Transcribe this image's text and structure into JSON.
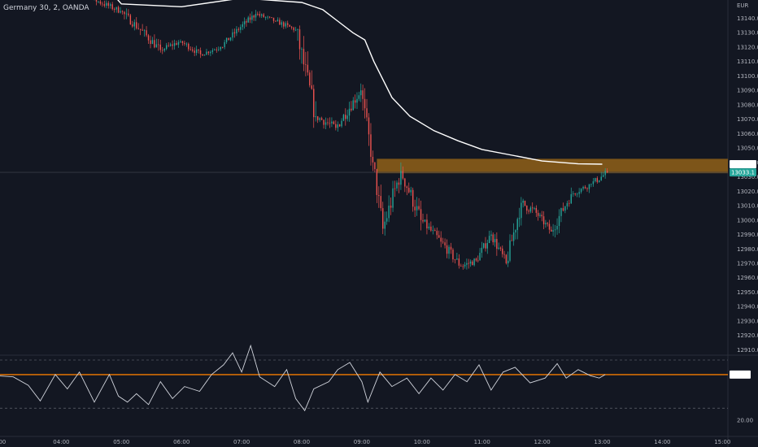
{
  "header": {
    "title": "Germany 30, 2, OANDA",
    "currency": "EUR"
  },
  "chart_data": [
    {
      "type": "candlestick",
      "title": "Germany 30, 2, OANDA",
      "ylabel": "EUR",
      "ylim": [
        12905,
        13157
      ],
      "y_ticks": [
        13140.0,
        13130.0,
        13120.0,
        13110.0,
        13100.0,
        13090.0,
        13080.0,
        13070.0,
        13060.0,
        13050.0,
        13040.0,
        13030.0,
        13020.0,
        13010.0,
        13000.0,
        12990.0,
        12980.0,
        12970.0,
        12960.0,
        12950.0,
        12940.0,
        12930.0,
        12920.0,
        12910.0
      ],
      "x_ticks": [
        "04:00",
        "05:00",
        "06:00",
        "07:00",
        "08:00",
        "09:00",
        "10:00",
        "11:00",
        "12:00",
        "13:00",
        "14:00",
        "15:00"
      ],
      "xlim_hours": [
        3.0,
        15.0
      ],
      "first_visible_label": ":00",
      "colors": {
        "up": "#26a69a",
        "down": "#ef5350",
        "background": "#131722",
        "grid": "#1e222d"
      },
      "moving_average": {
        "color": "#ffffff",
        "points": [
          [
            4.85,
            13157
          ],
          [
            5.0,
            13150
          ],
          [
            6.0,
            13148
          ],
          [
            7.0,
            13154
          ],
          [
            8.0,
            13151
          ],
          [
            8.35,
            13146
          ],
          [
            8.6,
            13138
          ],
          [
            8.85,
            13130
          ],
          [
            9.05,
            13125
          ],
          [
            9.2,
            13110
          ],
          [
            9.5,
            13085
          ],
          [
            9.8,
            13072
          ],
          [
            10.2,
            13062
          ],
          [
            10.6,
            13055
          ],
          [
            11.0,
            13049
          ],
          [
            11.5,
            13045
          ],
          [
            12.0,
            13041
          ],
          [
            12.6,
            13039
          ],
          [
            13.0,
            13038.8
          ]
        ]
      },
      "key_level": {
        "from": "09:15",
        "to": "15:00",
        "high": 13042.5,
        "low": 13032.5,
        "color": "#8a5c18"
      },
      "segments": [
        {
          "from": "04:00",
          "to": "04:30",
          "open": 13158,
          "close": 13154,
          "low": 13150,
          "high": 13160
        },
        {
          "from": "04:30",
          "to": "05:00",
          "open": 13154,
          "close": 13145,
          "low": 13140,
          "high": 13158
        },
        {
          "from": "05:00",
          "to": "05:20",
          "open": 13145,
          "close": 13132,
          "low": 13124,
          "high": 13150
        },
        {
          "from": "05:20",
          "to": "05:40",
          "open": 13132,
          "close": 13118,
          "low": 13108,
          "high": 13136
        },
        {
          "from": "05:40",
          "to": "06:00",
          "open": 13118,
          "close": 13124,
          "low": 13112,
          "high": 13130
        },
        {
          "from": "06:00",
          "to": "06:20",
          "open": 13124,
          "close": 13115,
          "low": 13110,
          "high": 13128
        },
        {
          "from": "06:20",
          "to": "06:40",
          "open": 13115,
          "close": 13120,
          "low": 13112,
          "high": 13126
        },
        {
          "from": "06:40",
          "to": "07:00",
          "open": 13120,
          "close": 13134,
          "low": 13118,
          "high": 13138
        },
        {
          "from": "07:00",
          "to": "07:15",
          "open": 13134,
          "close": 13143,
          "low": 13130,
          "high": 13150
        },
        {
          "from": "07:15",
          "to": "07:35",
          "open": 13143,
          "close": 13138,
          "low": 13132,
          "high": 13147
        },
        {
          "from": "07:35",
          "to": "07:55",
          "open": 13138,
          "close": 13132,
          "low": 13126,
          "high": 13142
        },
        {
          "from": "07:55",
          "to": "08:15",
          "open": 13132,
          "close": 13072,
          "low": 13064,
          "high": 13135
        },
        {
          "from": "08:15",
          "to": "08:35",
          "open": 13072,
          "close": 13064,
          "low": 13058,
          "high": 13085
        },
        {
          "from": "08:35",
          "to": "09:00",
          "open": 13064,
          "close": 13090,
          "low": 13060,
          "high": 13095
        },
        {
          "from": "09:00",
          "to": "09:12",
          "open": 13090,
          "close": 13040,
          "low": 13034,
          "high": 13094
        },
        {
          "from": "09:12",
          "to": "09:22",
          "open": 13040,
          "close": 12994,
          "low": 12979,
          "high": 13042
        },
        {
          "from": "09:22",
          "to": "09:40",
          "open": 12994,
          "close": 13034,
          "low": 12980,
          "high": 13040
        },
        {
          "from": "09:40",
          "to": "10:00",
          "open": 13034,
          "close": 13000,
          "low": 12988,
          "high": 13040
        },
        {
          "from": "10:00",
          "to": "10:20",
          "open": 13000,
          "close": 12985,
          "low": 12975,
          "high": 13005
        },
        {
          "from": "10:20",
          "to": "10:40",
          "open": 12985,
          "close": 12968,
          "low": 12961,
          "high": 12992
        },
        {
          "from": "10:40",
          "to": "10:55",
          "open": 12968,
          "close": 12972,
          "low": 12962,
          "high": 12985
        },
        {
          "from": "10:55",
          "to": "11:10",
          "open": 12972,
          "close": 12990,
          "low": 12967,
          "high": 12996
        },
        {
          "from": "11:10",
          "to": "11:25",
          "open": 12990,
          "close": 12970,
          "low": 12963,
          "high": 12995
        },
        {
          "from": "11:25",
          "to": "11:40",
          "open": 12970,
          "close": 13012,
          "low": 12966,
          "high": 13016
        },
        {
          "from": "11:40",
          "to": "11:55",
          "open": 13012,
          "close": 13005,
          "low": 12996,
          "high": 13027
        },
        {
          "from": "11:55",
          "to": "12:10",
          "open": 13005,
          "close": 12992,
          "low": 12988,
          "high": 13012
        },
        {
          "from": "12:10",
          "to": "12:30",
          "open": 12992,
          "close": 13018,
          "low": 12988,
          "high": 13024
        },
        {
          "from": "12:30",
          "to": "12:50",
          "open": 13018,
          "close": 13025,
          "low": 13012,
          "high": 13031
        },
        {
          "from": "12:50",
          "to": "13:06",
          "open": 13025,
          "close": 13033.1,
          "low": 13014,
          "high": 13036
        }
      ],
      "last_price": 13033.1,
      "ma_value": 13038.8
    },
    {
      "type": "line",
      "name": "RSI",
      "ylim": [
        17,
        90
      ],
      "y_ticks": [
        20.0
      ],
      "band": [
        30,
        70
      ],
      "level": 57.9,
      "level_color": "#f57c00",
      "last_value": 57.9,
      "points": [
        [
          2.9,
          57
        ],
        [
          3.2,
          56
        ],
        [
          3.45,
          49
        ],
        [
          3.65,
          36
        ],
        [
          3.9,
          58
        ],
        [
          4.1,
          46
        ],
        [
          4.3,
          60
        ],
        [
          4.55,
          35
        ],
        [
          4.8,
          58
        ],
        [
          4.95,
          40
        ],
        [
          5.1,
          35
        ],
        [
          5.25,
          42
        ],
        [
          5.45,
          33
        ],
        [
          5.65,
          52
        ],
        [
          5.85,
          38
        ],
        [
          6.05,
          48
        ],
        [
          6.3,
          44
        ],
        [
          6.5,
          58
        ],
        [
          6.7,
          66
        ],
        [
          6.85,
          76
        ],
        [
          7.0,
          60
        ],
        [
          7.15,
          82
        ],
        [
          7.3,
          56
        ],
        [
          7.55,
          48
        ],
        [
          7.75,
          62
        ],
        [
          7.9,
          38
        ],
        [
          8.05,
          28
        ],
        [
          8.2,
          46
        ],
        [
          8.45,
          52
        ],
        [
          8.6,
          62
        ],
        [
          8.8,
          68
        ],
        [
          9.0,
          52
        ],
        [
          9.1,
          35
        ],
        [
          9.3,
          60
        ],
        [
          9.5,
          48
        ],
        [
          9.75,
          55
        ],
        [
          9.95,
          42
        ],
        [
          10.15,
          55
        ],
        [
          10.35,
          45
        ],
        [
          10.55,
          58
        ],
        [
          10.75,
          52
        ],
        [
          10.95,
          66
        ],
        [
          11.15,
          45
        ],
        [
          11.35,
          60
        ],
        [
          11.55,
          64
        ],
        [
          11.8,
          51
        ],
        [
          12.05,
          55
        ],
        [
          12.25,
          67
        ],
        [
          12.4,
          55
        ],
        [
          12.6,
          62
        ],
        [
          12.8,
          57
        ],
        [
          12.95,
          55
        ],
        [
          13.05,
          57.9
        ]
      ]
    }
  ]
}
